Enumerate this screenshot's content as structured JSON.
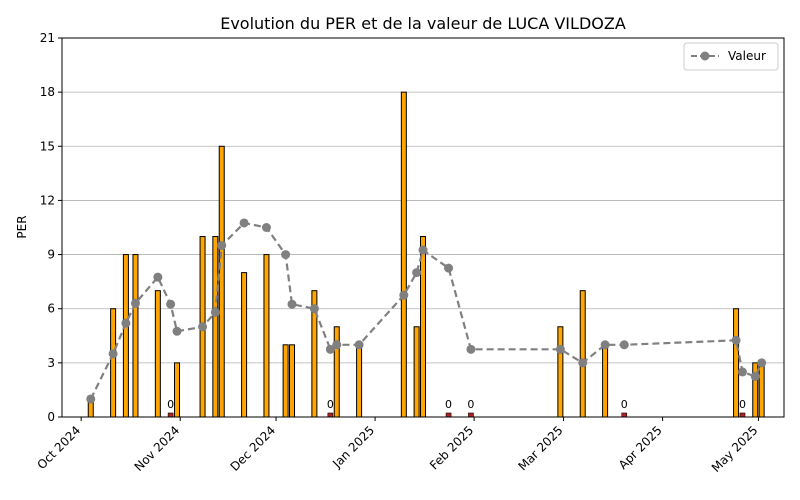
{
  "chart_data": {
    "type": "bar",
    "title": "Evolution du PER et de la valeur de LUCA VILDOZA",
    "ylabel": "PER",
    "xlabel": "",
    "ylim": [
      0,
      21
    ],
    "yticks": [
      0,
      3,
      6,
      9,
      12,
      15,
      18,
      21
    ],
    "xlim": [
      "2024-09-25",
      "2025-05-09"
    ],
    "xticks": [
      {
        "date": "2024-10-01",
        "label": "Oct 2024"
      },
      {
        "date": "2024-11-01",
        "label": "Nov 2024"
      },
      {
        "date": "2024-12-01",
        "label": "Dec 2024"
      },
      {
        "date": "2025-01-01",
        "label": "Jan 2025"
      },
      {
        "date": "2025-02-01",
        "label": "Feb 2025"
      },
      {
        "date": "2025-03-01",
        "label": "Mar 2025"
      },
      {
        "date": "2025-04-01",
        "label": "Apr 2025"
      },
      {
        "date": "2025-05-01",
        "label": "May 2025"
      }
    ],
    "grid": "horizontal",
    "legend_position": "top-right",
    "colors": {
      "bar": "#FFA500",
      "bar_zero": "#B22222",
      "bar_edge": "#000000",
      "line": "#808080",
      "grid": "#B0B0B0"
    },
    "bars": [
      {
        "date": "2024-10-04",
        "value": 1
      },
      {
        "date": "2024-10-11",
        "value": 6
      },
      {
        "date": "2024-10-15",
        "value": 9
      },
      {
        "date": "2024-10-18",
        "value": 9
      },
      {
        "date": "2024-10-25",
        "value": 7
      },
      {
        "date": "2024-10-29",
        "value": 0,
        "label": "0"
      },
      {
        "date": "2024-10-31",
        "value": 3
      },
      {
        "date": "2024-11-08",
        "value": 10
      },
      {
        "date": "2024-11-12",
        "value": 10
      },
      {
        "date": "2024-11-14",
        "value": 15
      },
      {
        "date": "2024-11-21",
        "value": 8
      },
      {
        "date": "2024-11-28",
        "value": 9
      },
      {
        "date": "2024-12-04",
        "value": 4
      },
      {
        "date": "2024-12-06",
        "value": 4
      },
      {
        "date": "2024-12-13",
        "value": 7
      },
      {
        "date": "2024-12-18",
        "value": 0,
        "label": "0"
      },
      {
        "date": "2024-12-20",
        "value": 5
      },
      {
        "date": "2024-12-27",
        "value": 4
      },
      {
        "date": "2025-01-10",
        "value": 18
      },
      {
        "date": "2025-01-14",
        "value": 5
      },
      {
        "date": "2025-01-16",
        "value": 10
      },
      {
        "date": "2025-01-24",
        "value": 0,
        "label": "0"
      },
      {
        "date": "2025-01-31",
        "value": 0,
        "label": "0"
      },
      {
        "date": "2025-02-28",
        "value": 5
      },
      {
        "date": "2025-03-07",
        "value": 7
      },
      {
        "date": "2025-03-14",
        "value": 4
      },
      {
        "date": "2025-03-20",
        "value": 0,
        "label": "0"
      },
      {
        "date": "2025-04-24",
        "value": 6
      },
      {
        "date": "2025-04-26",
        "value": 0,
        "label": "0"
      },
      {
        "date": "2025-04-30",
        "value": 3
      },
      {
        "date": "2025-05-02",
        "value": 3
      }
    ],
    "series": [
      {
        "name": "Valeur",
        "type": "line",
        "points": [
          {
            "date": "2024-10-04",
            "value": 1.0
          },
          {
            "date": "2024-10-11",
            "value": 3.5
          },
          {
            "date": "2024-10-15",
            "value": 5.2
          },
          {
            "date": "2024-10-18",
            "value": 6.3
          },
          {
            "date": "2024-10-25",
            "value": 7.75
          },
          {
            "date": "2024-10-29",
            "value": 6.25
          },
          {
            "date": "2024-10-31",
            "value": 4.75
          },
          {
            "date": "2024-11-08",
            "value": 5.0
          },
          {
            "date": "2024-11-12",
            "value": 5.8
          },
          {
            "date": "2024-11-14",
            "value": 9.5
          },
          {
            "date": "2024-11-21",
            "value": 10.75
          },
          {
            "date": "2024-11-28",
            "value": 10.5
          },
          {
            "date": "2024-12-04",
            "value": 9.0
          },
          {
            "date": "2024-12-06",
            "value": 6.25
          },
          {
            "date": "2024-12-13",
            "value": 6.0
          },
          {
            "date": "2024-12-18",
            "value": 3.75
          },
          {
            "date": "2024-12-20",
            "value": 4.0
          },
          {
            "date": "2024-12-27",
            "value": 4.0
          },
          {
            "date": "2025-01-10",
            "value": 6.75
          },
          {
            "date": "2025-01-14",
            "value": 8.0
          },
          {
            "date": "2025-01-16",
            "value": 9.25
          },
          {
            "date": "2025-01-24",
            "value": 8.25
          },
          {
            "date": "2025-01-31",
            "value": 3.75
          },
          {
            "date": "2025-02-28",
            "value": 3.75
          },
          {
            "date": "2025-03-07",
            "value": 3.0
          },
          {
            "date": "2025-03-14",
            "value": 4.0
          },
          {
            "date": "2025-03-20",
            "value": 4.0
          },
          {
            "date": "2025-04-24",
            "value": 4.25
          },
          {
            "date": "2025-04-26",
            "value": 2.5
          },
          {
            "date": "2025-04-30",
            "value": 2.25
          },
          {
            "date": "2025-05-02",
            "value": 3.0
          }
        ]
      }
    ]
  }
}
